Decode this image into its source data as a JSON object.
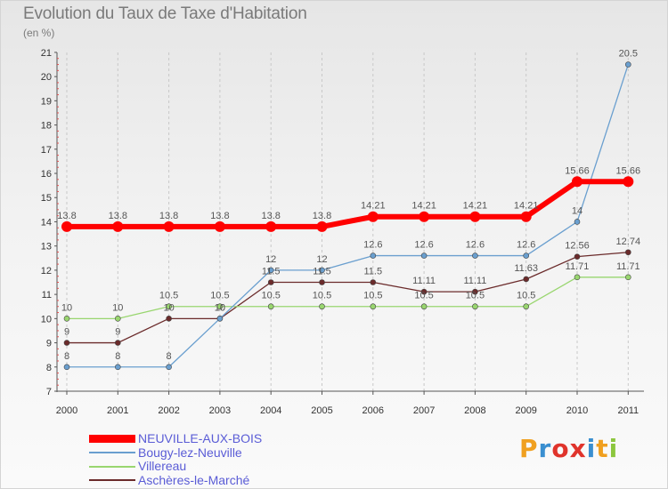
{
  "chart_data": {
    "type": "line",
    "title": "Evolution du Taux de Taxe d'Habitation",
    "ylabel": "(en %)",
    "xlabel": "",
    "categories": [
      "2000",
      "2001",
      "2002",
      "2003",
      "2004",
      "2005",
      "2006",
      "2007",
      "2008",
      "2009",
      "2010",
      "2011"
    ],
    "ylim": [
      7,
      21
    ],
    "yticks": [
      "7",
      "8",
      "9",
      "10",
      "11",
      "12",
      "13",
      "14",
      "15",
      "16",
      "17",
      "18",
      "19",
      "20",
      "21"
    ],
    "series": [
      {
        "name": "NEUVILLE-AUX-BOIS",
        "color": "#ff0000",
        "values": [
          13.8,
          13.8,
          13.8,
          13.8,
          13.8,
          13.8,
          14.21,
          14.21,
          14.21,
          14.21,
          15.66,
          15.66
        ],
        "labels": [
          "13.8",
          "13.8",
          "13.8",
          "13.8",
          "13.8",
          "13.8",
          "14.21",
          "14.21",
          "14.21",
          "14.21",
          "15.66",
          "15.66"
        ]
      },
      {
        "name": "Bougy-lez-Neuville",
        "color": "#6a9fcf",
        "values": [
          8,
          8,
          8,
          10,
          12,
          12,
          12.6,
          12.6,
          12.6,
          12.6,
          14,
          20.5
        ],
        "labels": [
          "8",
          "8",
          "8",
          "10",
          "12",
          "12",
          "12.6",
          "12.6",
          "12.6",
          "12.6",
          "14",
          "20.5"
        ]
      },
      {
        "name": "Villereau",
        "color": "#99d66f",
        "values": [
          10,
          10,
          10.5,
          10.5,
          10.5,
          10.5,
          10.5,
          10.5,
          10.5,
          10.5,
          11.71,
          11.71
        ],
        "labels": [
          "10",
          "10",
          "10.5",
          "10.5",
          "10.5",
          "10.5",
          "10.5",
          "10.5",
          "10.5",
          "10.5",
          "11.71",
          "11.71"
        ]
      },
      {
        "name": "Aschères-le-Marché",
        "color": "#6b2b2b",
        "values": [
          9,
          9,
          10,
          10,
          11.5,
          11.5,
          11.5,
          11.11,
          11.11,
          11.63,
          12.56,
          12.74
        ],
        "labels": [
          "9",
          "9",
          "10",
          "10",
          "11.5",
          "11.5",
          "11.5",
          "11.11",
          "11.11",
          "11.63",
          "12.56",
          "12.74"
        ]
      }
    ]
  },
  "logo": {
    "letters": [
      "P",
      "r",
      "o",
      "x",
      "i",
      "t",
      "i"
    ],
    "colors": [
      "#f0a020",
      "#3a8fd0",
      "#e0342c",
      "#e0342c",
      "#3a8fd0",
      "#f0a020",
      "#8cc63e"
    ]
  }
}
